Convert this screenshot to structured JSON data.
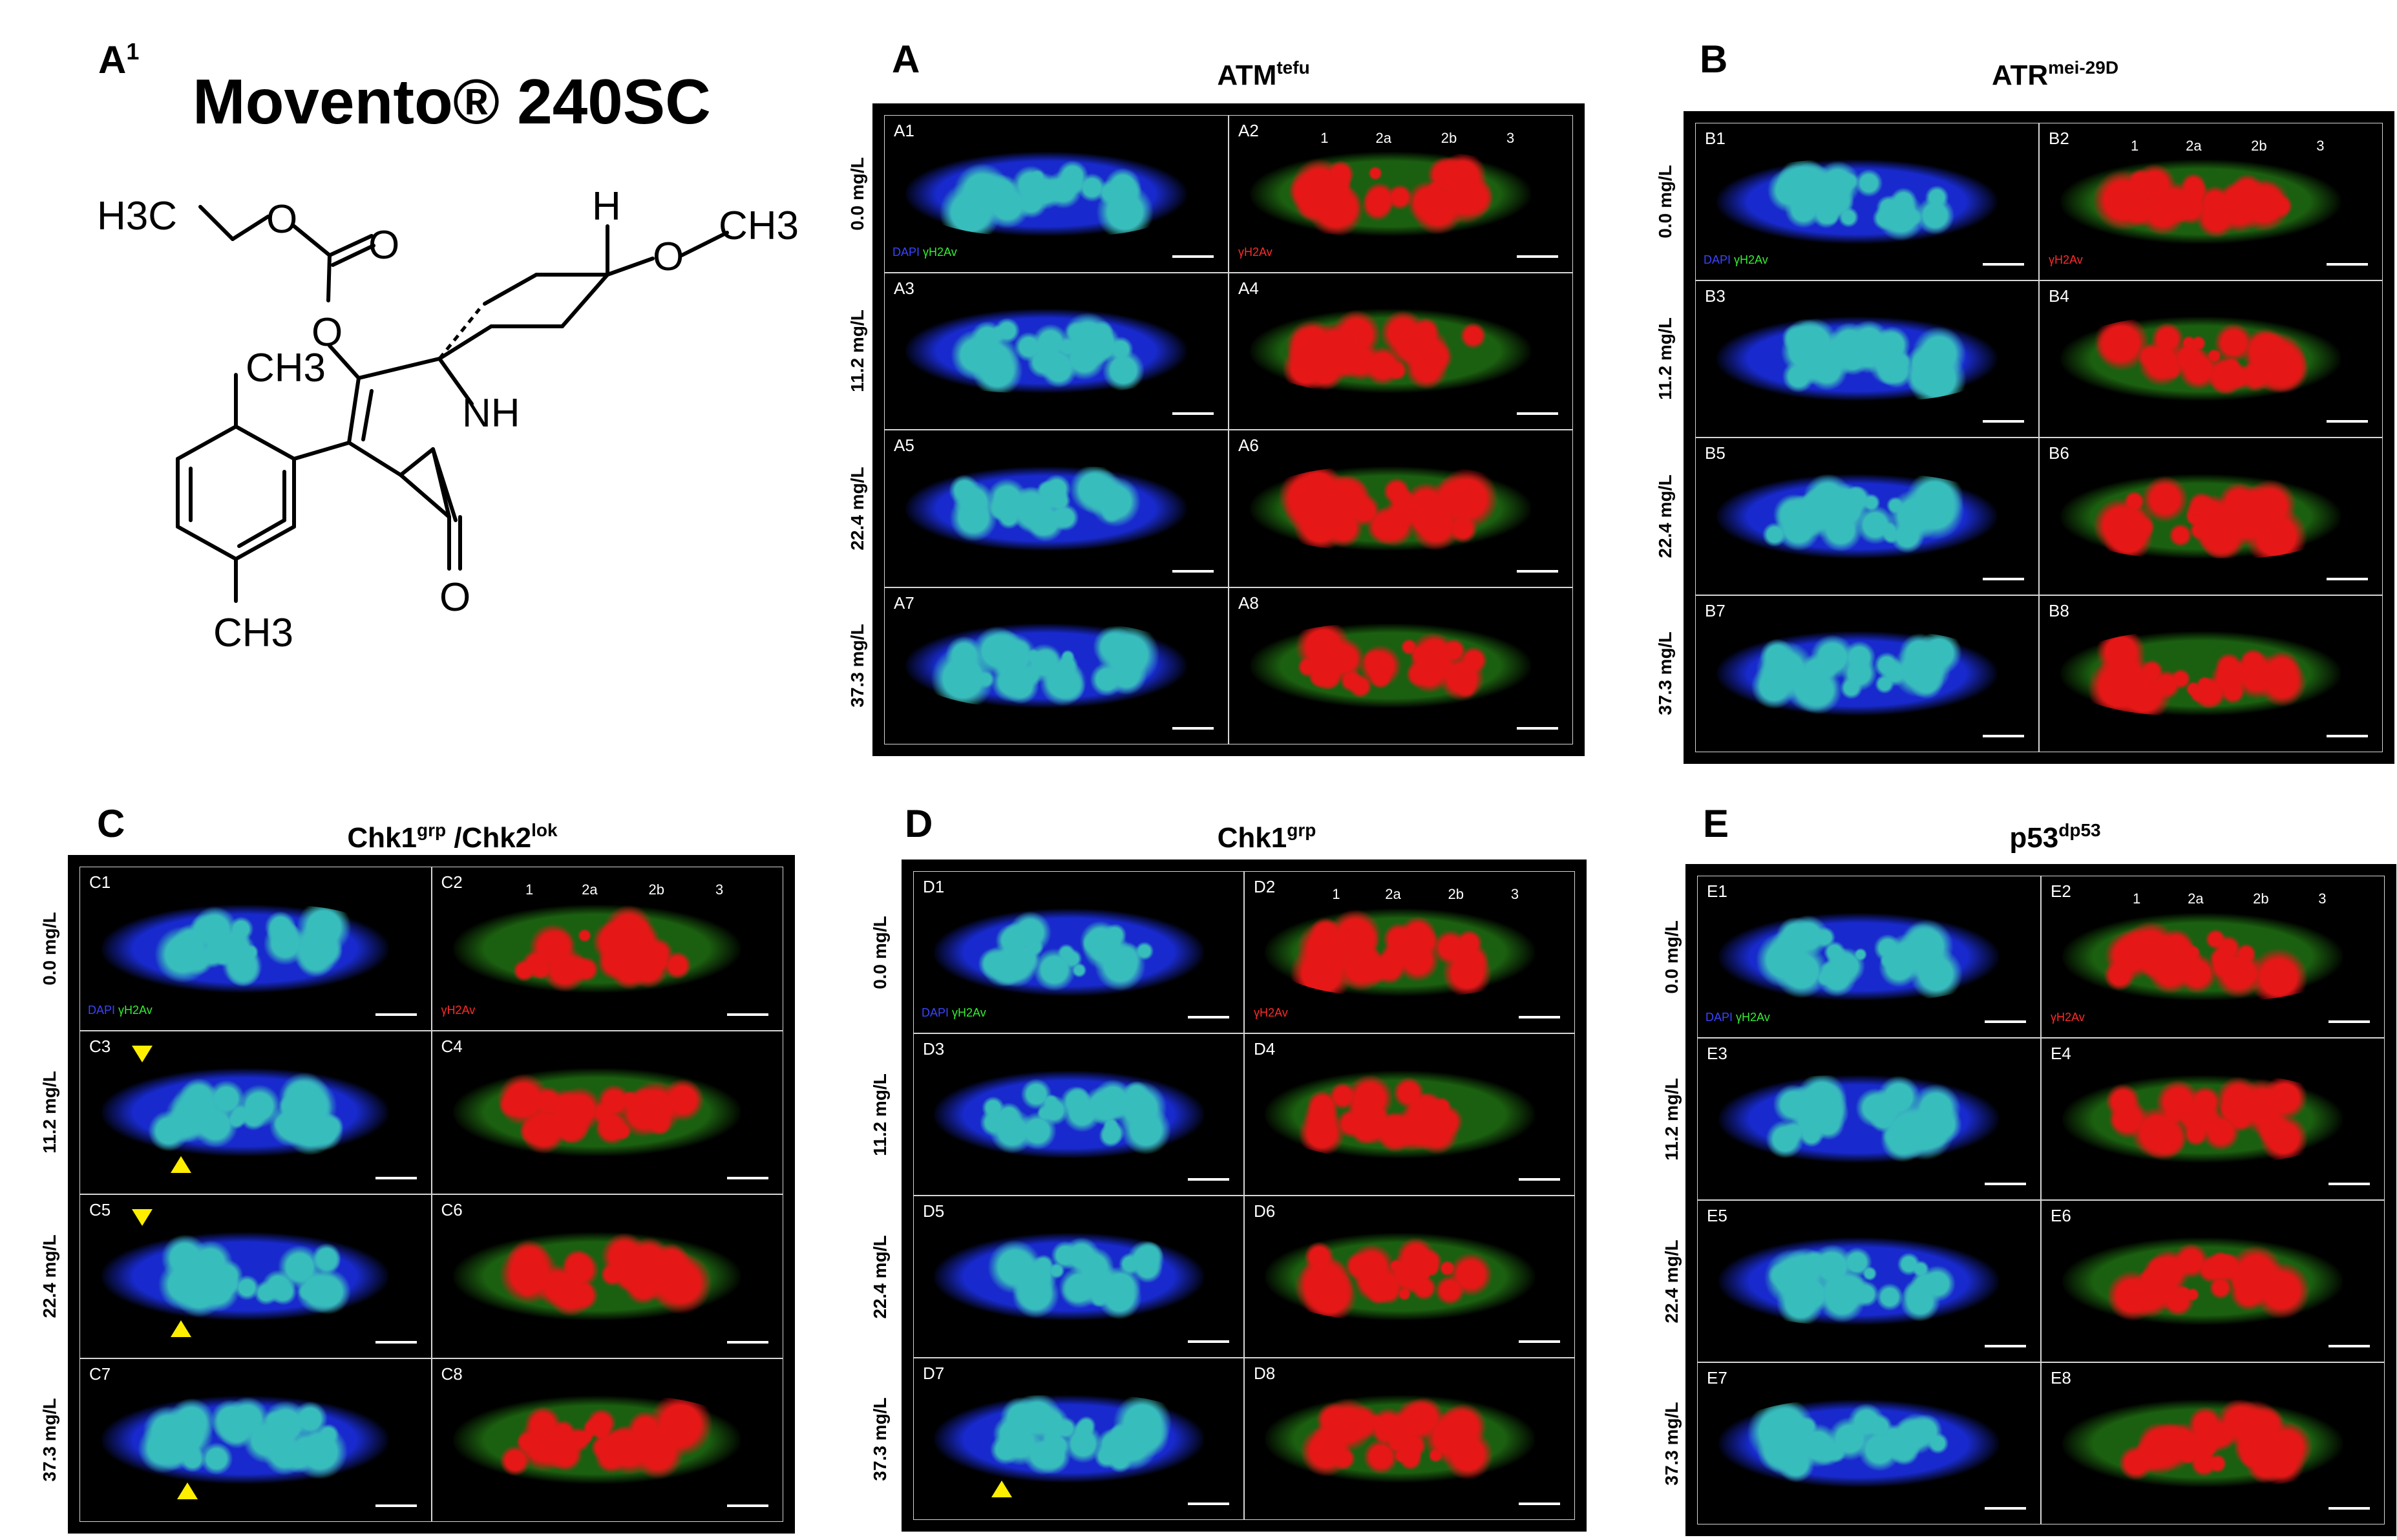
{
  "molecule": {
    "panel_letter": "A",
    "panel_superscript": "1",
    "name": "Movento® 240SC",
    "atoms": {
      "h3c_left": "H3C",
      "o_ether": "O",
      "o_carbonyl": "O",
      "o_ester": "O",
      "h_top": "H",
      "o_methoxy": "O",
      "ch3_methoxy": "CH3",
      "ch3_aryl_top": "CH3",
      "nh": "NH",
      "o_lactam": "O",
      "ch3_aryl_bottom": "CH3"
    }
  },
  "stain_labels": {
    "dapi": "DAPI",
    "green": "γH2Av",
    "red": "γH2Av"
  },
  "concentrations": [
    "0.0 mg/L",
    "11.2 mg/L",
    "22.4 mg/L",
    "37.3 mg/L"
  ],
  "stages": [
    "1",
    "2a",
    "2b",
    "3"
  ],
  "panels": [
    {
      "letter": "A",
      "title": "ATM",
      "title_sup": "tefu",
      "cells": [
        "A1",
        "A2",
        "A3",
        "A4",
        "A5",
        "A6",
        "A7",
        "A8"
      ]
    },
    {
      "letter": "B",
      "title": "ATR",
      "title_sup": "mei-29D",
      "cells": [
        "B1",
        "B2",
        "B3",
        "B4",
        "B5",
        "B6",
        "B7",
        "B8"
      ]
    },
    {
      "letter": "C",
      "title": "Chk1",
      "title_sup": "grp",
      "title2": " /Chk2",
      "title2_sup": "lok",
      "cells": [
        "C1",
        "C2",
        "C3",
        "C4",
        "C5",
        "C6",
        "C7",
        "C8"
      ]
    },
    {
      "letter": "D",
      "title": "Chk1",
      "title_sup": "grp",
      "cells": [
        "D1",
        "D2",
        "D3",
        "D4",
        "D5",
        "D6",
        "D7",
        "D8"
      ]
    },
    {
      "letter": "E",
      "title": "p53",
      "title_sup": "dp53",
      "cells": [
        "E1",
        "E2",
        "E3",
        "E4",
        "E5",
        "E6",
        "E7",
        "E8"
      ]
    }
  ],
  "colors": {
    "dapi": "#1a2dd8",
    "green": "#1f6b12",
    "red": "#ff1a1a",
    "cyan": "#3cc8c8",
    "arrow": "#ffee00"
  }
}
